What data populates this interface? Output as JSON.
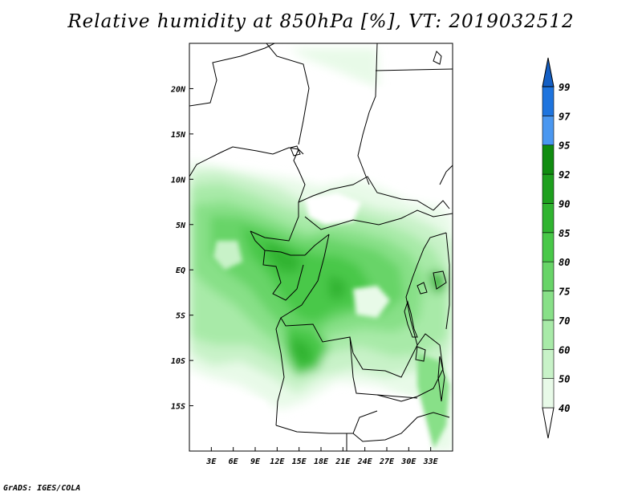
{
  "title": "Relative humidity at 850hPa [%], VT: 2019032512",
  "credit": "GrADS: IGES/COLA",
  "map": {
    "lon_range": [
      0,
      36
    ],
    "lat_range": [
      -20,
      25
    ],
    "lon_ticks": [
      {
        "value": 3,
        "label": "3E"
      },
      {
        "value": 6,
        "label": "6E"
      },
      {
        "value": 9,
        "label": "9E"
      },
      {
        "value": 12,
        "label": "12E"
      },
      {
        "value": 15,
        "label": "15E"
      },
      {
        "value": 18,
        "label": "18E"
      },
      {
        "value": 21,
        "label": "21E"
      },
      {
        "value": 24,
        "label": "24E"
      },
      {
        "value": 27,
        "label": "27E"
      },
      {
        "value": 30,
        "label": "30E"
      },
      {
        "value": 33,
        "label": "33E"
      }
    ],
    "lat_ticks": [
      {
        "value": 20,
        "label": "20N"
      },
      {
        "value": 15,
        "label": "15N"
      },
      {
        "value": 10,
        "label": "10N"
      },
      {
        "value": 5,
        "label": "5N"
      },
      {
        "value": 0,
        "label": "EQ"
      },
      {
        "value": -5,
        "label": "5S"
      },
      {
        "value": -10,
        "label": "10S"
      },
      {
        "value": -15,
        "label": "15S"
      }
    ]
  },
  "colorbar": {
    "levels": [
      "40",
      "50",
      "60",
      "70",
      "75",
      "80",
      "85",
      "90",
      "92",
      "95",
      "97",
      "99"
    ],
    "colors": [
      "#ffffff",
      "#e8fae8",
      "#c8f2c8",
      "#a8eaa8",
      "#88e088",
      "#68d468",
      "#48c848",
      "#30b430",
      "#1ea01e",
      "#108c10",
      "#4a97f0",
      "#1e74de",
      "#145fc4"
    ]
  }
}
